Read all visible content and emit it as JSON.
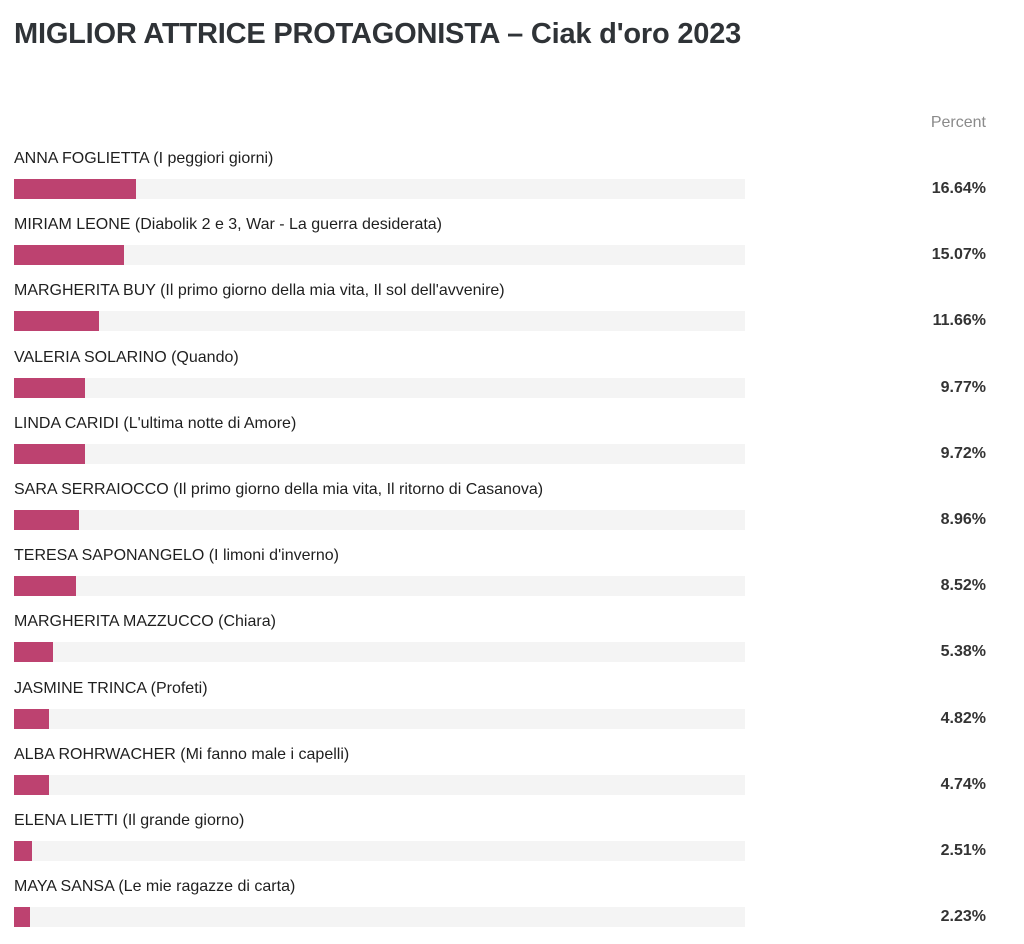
{
  "chart_data": {
    "type": "bar",
    "orientation": "horizontal",
    "title": "MIGLIOR ATTRICE PROTAGONISTA – Ciak d'oro 2023",
    "value_column_header": "Percent",
    "value_suffix": "%",
    "xlim": [
      0,
      100
    ],
    "bar_color": "#bd4270",
    "track_color": "#f4f4f4",
    "categories": [
      "ANNA FOGLIETTA (I peggiori giorni)",
      "MIRIAM LEONE (Diabolik 2 e 3, War - La guerra desiderata)",
      "MARGHERITA BUY (Il primo giorno della mia vita, Il sol dell'avvenire)",
      "VALERIA SOLARINO (Quando)",
      "LINDA CARIDI (L'ultima notte di Amore)",
      "SARA SERRAIOCCO (Il primo giorno della mia vita, Il ritorno di Casanova)",
      "TERESA SAPONANGELO (I limoni d'inverno)",
      "MARGHERITA MAZZUCCO (Chiara)",
      "JASMINE TRINCA (Profeti)",
      "ALBA ROHRWACHER (Mi fanno male i capelli)",
      "ELENA LIETTI (Il grande giorno)",
      "MAYA SANSA (Le mie ragazze di carta)"
    ],
    "values": [
      16.64,
      15.07,
      11.66,
      9.77,
      9.72,
      8.96,
      8.52,
      5.38,
      4.82,
      4.74,
      2.51,
      2.23
    ]
  }
}
